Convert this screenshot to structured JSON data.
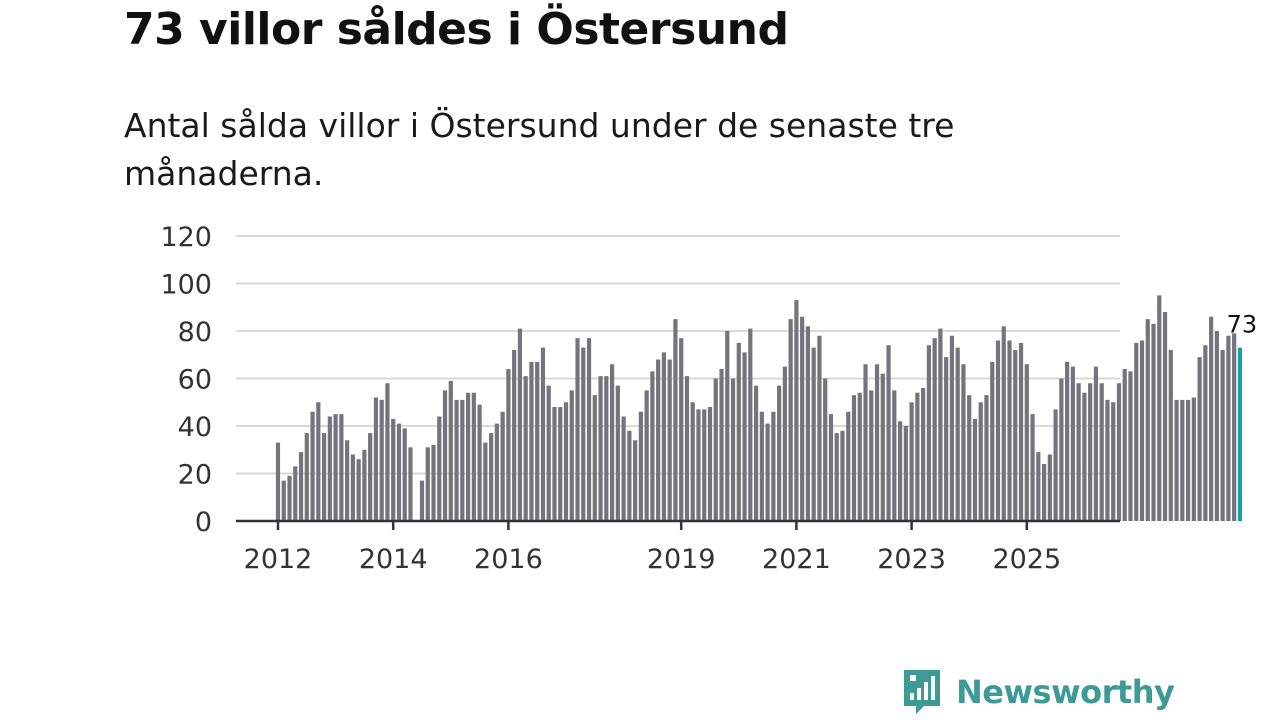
{
  "header": {
    "title": "73 villor såldes i Östersund",
    "subtitle": "Antal sålda villor i Östersund under de senaste tre månaderna."
  },
  "brand": {
    "name": "Newsworthy"
  },
  "colors": {
    "bar": "#75747a",
    "highlight": "#1aa3a6",
    "grid": "#d9d9d9",
    "axis": "#333333",
    "brand": "#3e9a96"
  },
  "chart_data": {
    "type": "bar",
    "title": "73 villor såldes i Östersund",
    "subtitle": "Antal sålda villor i Östersund under de senaste tre månaderna.",
    "xlabel": "",
    "ylabel": "",
    "ylim": [
      0,
      120
    ],
    "yticks": [
      "0",
      "20",
      "40",
      "60",
      "80",
      "100",
      "120"
    ],
    "grid": true,
    "frequency": "monthly",
    "start": "2012-01",
    "xtick_labels": [
      {
        "label": "2012",
        "index": 0
      },
      {
        "label": "2014",
        "index": 20
      },
      {
        "label": "2016",
        "index": 40
      },
      {
        "label": "2019",
        "index": 70
      },
      {
        "label": "2021",
        "index": 90
      },
      {
        "label": "2023",
        "index": 110
      },
      {
        "label": "2025",
        "index": 130
      }
    ],
    "values": [
      33,
      17,
      19,
      23,
      29,
      37,
      46,
      50,
      37,
      44,
      45,
      45,
      34,
      28,
      26,
      30,
      37,
      52,
      51,
      58,
      43,
      41,
      39,
      31,
      0,
      17,
      31,
      32,
      44,
      55,
      59,
      51,
      51,
      54,
      54,
      49,
      33,
      37,
      41,
      46,
      64,
      72,
      81,
      61,
      67,
      67,
      73,
      57,
      48,
      48,
      50,
      55,
      77,
      73,
      77,
      53,
      61,
      61,
      66,
      57,
      44,
      38,
      34,
      46,
      55,
      63,
      68,
      71,
      68,
      85,
      77,
      61,
      50,
      47,
      47,
      48,
      60,
      64,
      80,
      60,
      75,
      71,
      81,
      57,
      46,
      41,
      46,
      57,
      65,
      85,
      93,
      86,
      82,
      73,
      78,
      60,
      45,
      37,
      38,
      46,
      53,
      54,
      66,
      55,
      66,
      62,
      74,
      55,
      42,
      40,
      50,
      54,
      56,
      74,
      77,
      81,
      69,
      78,
      73,
      66,
      53,
      43,
      50,
      53,
      67,
      76,
      82,
      76,
      72,
      75,
      66,
      45,
      29,
      24,
      28,
      47,
      60,
      67,
      65,
      58,
      54,
      58,
      65,
      58,
      51,
      50,
      58,
      64,
      63,
      75,
      76,
      85,
      83,
      95,
      88,
      72,
      51,
      51,
      51,
      52,
      69,
      74,
      86,
      80,
      72,
      78,
      79,
      73
    ],
    "highlight_last": true,
    "last_value_label": "73"
  }
}
